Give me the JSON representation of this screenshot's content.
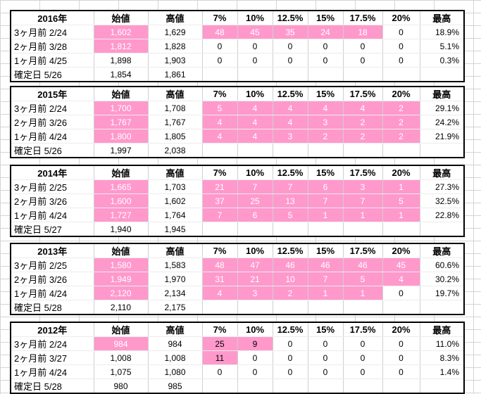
{
  "headers": [
    "始値",
    "高値",
    "7%",
    "10%",
    "12.5%",
    "15%",
    "17.5%",
    "20%",
    "最高"
  ],
  "blocks": [
    {
      "year": "2016年",
      "rows": [
        {
          "label": "3ヶ月前  2/24",
          "open": "1,602",
          "high": "1,629",
          "c7": "48",
          "c10": "45",
          "c125": "35",
          "c15": "24",
          "c175": "18",
          "c20": "0",
          "max": "18.9%",
          "pinkOpen": true,
          "pinkThrough": 5
        },
        {
          "label": "2ヶ月前  3/28",
          "open": "1,812",
          "high": "1,828",
          "c7": "0",
          "c10": "0",
          "c125": "0",
          "c15": "0",
          "c175": "0",
          "c20": "0",
          "max": "5.1%",
          "pinkOpen": true,
          "pinkThrough": 0
        },
        {
          "label": "1ヶ月前  4/25",
          "open": "1,898",
          "high": "1,903",
          "c7": "0",
          "c10": "0",
          "c125": "0",
          "c15": "0",
          "c175": "0",
          "c20": "0",
          "max": "0.3%",
          "pinkOpen": false,
          "pinkThrough": 0
        },
        {
          "label": "確定日  5/26",
          "open": "1,854",
          "high": "1,861",
          "c7": "",
          "c10": "",
          "c125": "",
          "c15": "",
          "c175": "",
          "c20": "",
          "max": "",
          "pinkOpen": false,
          "pinkThrough": 0
        }
      ]
    },
    {
      "year": "2015年",
      "rows": [
        {
          "label": "3ヶ月前  2/24",
          "open": "1,700",
          "high": "1,708",
          "c7": "5",
          "c10": "4",
          "c125": "4",
          "c15": "4",
          "c175": "4",
          "c20": "2",
          "max": "29.1%",
          "pinkOpen": true,
          "pinkThrough": 6
        },
        {
          "label": "2ヶ月前  3/26",
          "open": "1,767",
          "high": "1,767",
          "c7": "4",
          "c10": "4",
          "c125": "4",
          "c15": "3",
          "c175": "2",
          "c20": "2",
          "max": "24.2%",
          "pinkOpen": true,
          "pinkThrough": 6
        },
        {
          "label": "1ヶ月前  4/24",
          "open": "1,800",
          "high": "1,805",
          "c7": "4",
          "c10": "4",
          "c125": "3",
          "c15": "2",
          "c175": "2",
          "c20": "2",
          "max": "21.9%",
          "pinkOpen": true,
          "pinkThrough": 6
        },
        {
          "label": "確定日  5/26",
          "open": "1,997",
          "high": "2,038",
          "c7": "",
          "c10": "",
          "c125": "",
          "c15": "",
          "c175": "",
          "c20": "",
          "max": "",
          "pinkOpen": false,
          "pinkThrough": 0
        }
      ]
    },
    {
      "year": "2014年",
      "rows": [
        {
          "label": "3ヶ月前  2/25",
          "open": "1,665",
          "high": "1,703",
          "c7": "21",
          "c10": "7",
          "c125": "7",
          "c15": "6",
          "c175": "3",
          "c20": "1",
          "max": "27.3%",
          "pinkOpen": true,
          "pinkThrough": 6
        },
        {
          "label": "2ヶ月前  3/26",
          "open": "1,600",
          "high": "1,602",
          "c7": "37",
          "c10": "25",
          "c125": "13",
          "c15": "7",
          "c175": "7",
          "c20": "5",
          "max": "32.5%",
          "pinkOpen": true,
          "pinkThrough": 6
        },
        {
          "label": "1ヶ月前  4/24",
          "open": "1,727",
          "high": "1,764",
          "c7": "7",
          "c10": "6",
          "c125": "5",
          "c15": "1",
          "c175": "1",
          "c20": "1",
          "max": "22.8%",
          "pinkOpen": true,
          "pinkThrough": 6
        },
        {
          "label": "確定日  5/27",
          "open": "1,940",
          "high": "1,945",
          "c7": "",
          "c10": "",
          "c125": "",
          "c15": "",
          "c175": "",
          "c20": "",
          "max": "",
          "pinkOpen": false,
          "pinkThrough": 0
        }
      ]
    },
    {
      "year": "2013年",
      "rows": [
        {
          "label": "3ヶ月前  2/25",
          "open": "1,580",
          "high": "1,583",
          "c7": "48",
          "c10": "47",
          "c125": "46",
          "c15": "46",
          "c175": "46",
          "c20": "45",
          "max": "60.6%",
          "pinkOpen": true,
          "pinkThrough": 6
        },
        {
          "label": "2ヶ月前  3/26",
          "open": "1,949",
          "high": "1,970",
          "c7": "31",
          "c10": "21",
          "c125": "10",
          "c15": "7",
          "c175": "5",
          "c20": "4",
          "max": "30.2%",
          "pinkOpen": true,
          "pinkThrough": 6
        },
        {
          "label": "1ヶ月前  4/24",
          "open": "2,120",
          "high": "2,134",
          "c7": "4",
          "c10": "3",
          "c125": "2",
          "c15": "1",
          "c175": "1",
          "c20": "0",
          "max": "19.7%",
          "pinkOpen": true,
          "pinkThrough": 5
        },
        {
          "label": "確定日  5/28",
          "open": "2,110",
          "high": "2,175",
          "c7": "",
          "c10": "",
          "c125": "",
          "c15": "",
          "c175": "",
          "c20": "",
          "max": "",
          "pinkOpen": false,
          "pinkThrough": 0
        }
      ]
    },
    {
      "year": "2012年",
      "rows": [
        {
          "label": "3ヶ月前  2/24",
          "open": "984",
          "high": "984",
          "c7": "25",
          "c10": "9",
          "c125": "0",
          "c15": "0",
          "c175": "0",
          "c20": "0",
          "max": "11.0%",
          "pinkOpen": true,
          "pinkThrough": 2,
          "darkText": true
        },
        {
          "label": "2ヶ月前  3/27",
          "open": "1,008",
          "high": "1,008",
          "c7": "11",
          "c10": "0",
          "c125": "0",
          "c15": "0",
          "c175": "0",
          "c20": "0",
          "max": "8.3%",
          "pinkOpen": false,
          "pinkThrough": 1,
          "darkText": true
        },
        {
          "label": "1ヶ月前  4/24",
          "open": "1,075",
          "high": "1,080",
          "c7": "0",
          "c10": "0",
          "c125": "0",
          "c15": "0",
          "c175": "0",
          "c20": "0",
          "max": "1.4%",
          "pinkOpen": false,
          "pinkThrough": 0
        },
        {
          "label": "確定日  5/28",
          "open": "980",
          "high": "985",
          "c7": "",
          "c10": "",
          "c125": "",
          "c15": "",
          "c175": "",
          "c20": "",
          "max": "",
          "pinkOpen": false,
          "pinkThrough": 0
        }
      ]
    }
  ],
  "colors": {
    "pink": "#ff99cc",
    "gridline": "#d4d4d4",
    "border": "#000000"
  }
}
